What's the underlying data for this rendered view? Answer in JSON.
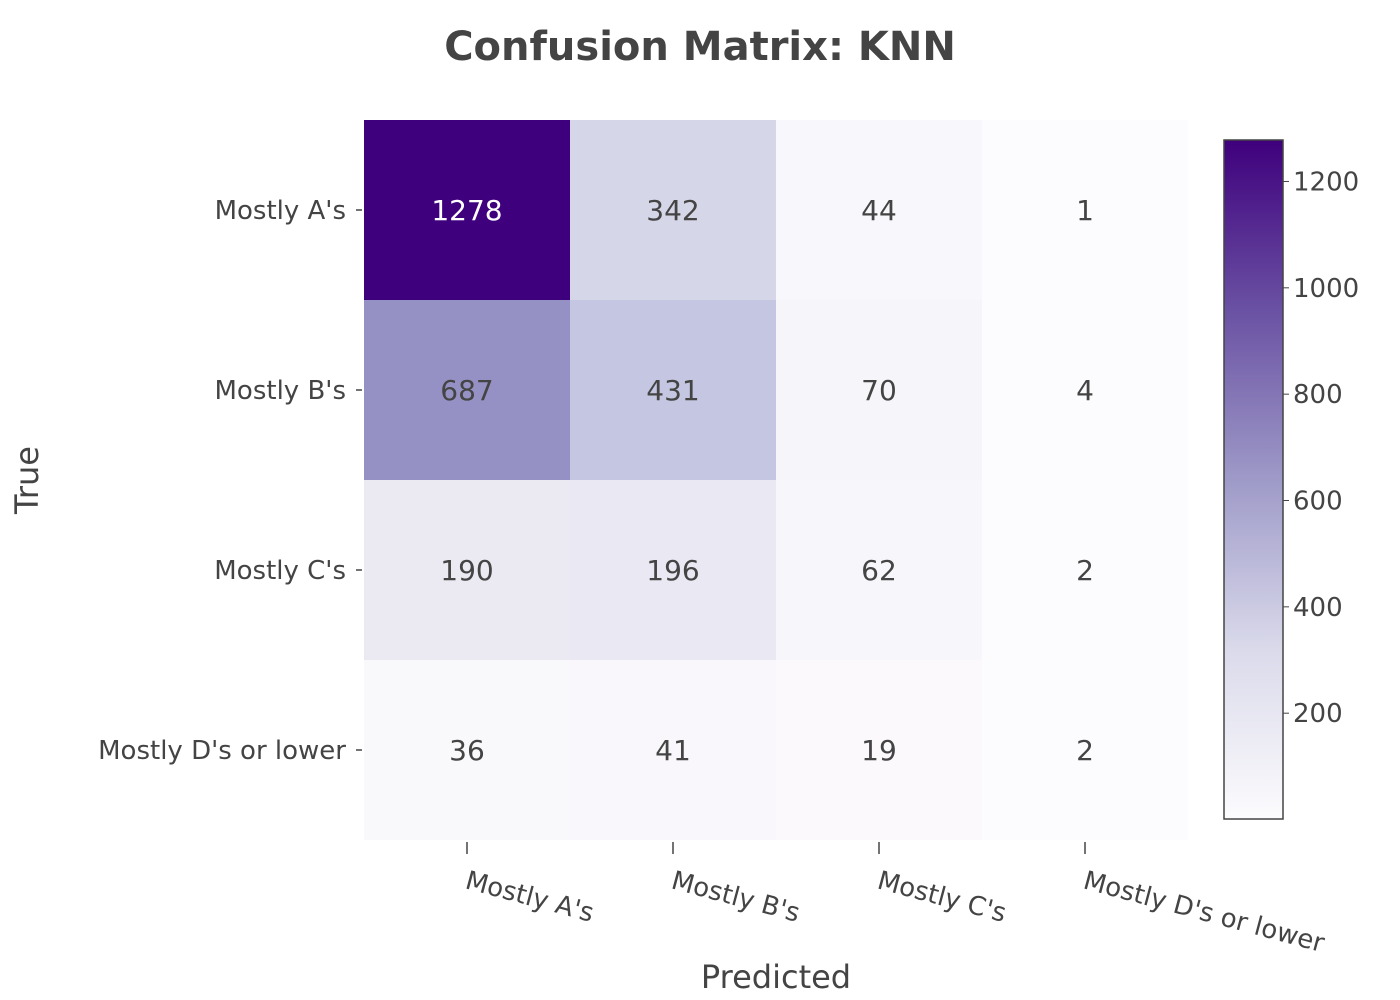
{
  "chart_data": {
    "type": "heatmap",
    "title": "Confusion Matrix: KNN",
    "xlabel": "Predicted",
    "ylabel": "True",
    "x_categories": [
      "Mostly A's",
      "Mostly B's",
      "Mostly C's",
      "Mostly D's or lower"
    ],
    "y_categories": [
      "Mostly A's",
      "Mostly B's",
      "Mostly C's",
      "Mostly D's or lower"
    ],
    "values": [
      [
        1278,
        342,
        44,
        1
      ],
      [
        687,
        431,
        70,
        4
      ],
      [
        190,
        196,
        62,
        2
      ],
      [
        36,
        41,
        19,
        2
      ]
    ],
    "colorscale": {
      "min": 1,
      "max": 1278,
      "low_color": "#fcfbfd",
      "mid_color": "#9e9ac8",
      "high_color": "#3f007d"
    },
    "colorbar_ticks": [
      200,
      400,
      600,
      800,
      1000,
      1200
    ],
    "grid": false,
    "legend_placement": "right"
  }
}
